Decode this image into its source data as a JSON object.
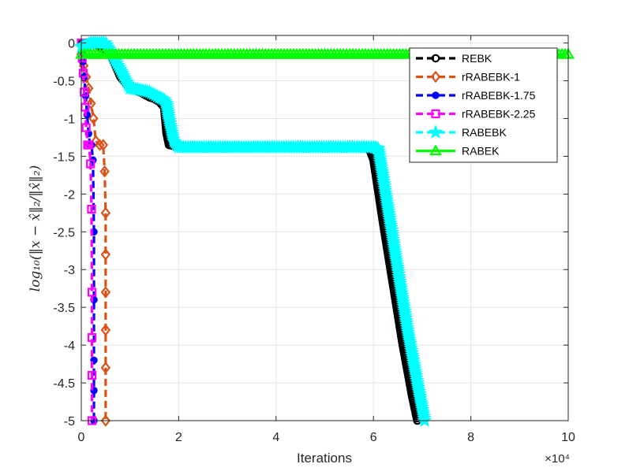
{
  "chart_data": {
    "type": "line",
    "title": "",
    "xlabel": "Iterations",
    "ylabel": "log₁₀(‖x − x̂‖₂/‖x̂‖₂)",
    "x_exponent_label": "×10⁴",
    "x_scale": 10000,
    "xlim": [
      0,
      100000
    ],
    "ylim": [
      -5,
      0.1
    ],
    "x_ticks": [
      0,
      20000,
      40000,
      60000,
      80000,
      100000
    ],
    "x_tick_labels": [
      "0",
      "2",
      "4",
      "6",
      "8",
      "10"
    ],
    "y_ticks": [
      0,
      -0.5,
      -1,
      -1.5,
      -2,
      -2.5,
      -3,
      -3.5,
      -4,
      -4.5,
      -5
    ],
    "y_tick_labels": [
      "0",
      "-0.5",
      "-1",
      "-1.5",
      "-2",
      "-2.5",
      "-3",
      "-3.5",
      "-4",
      "-4.5",
      "-5"
    ],
    "grid": true,
    "legend_position": "top-right",
    "series": [
      {
        "name": "REBK",
        "color": "#000000",
        "marker": "circle",
        "x": [
          0,
          1000,
          3000,
          6000,
          8000,
          10000,
          12000,
          14000,
          15000,
          16000,
          17000,
          17500,
          18000,
          20000,
          30000,
          45000,
          59000,
          60000,
          62000,
          64000,
          66000,
          68000,
          69000
        ],
        "y": [
          0,
          0,
          -0.02,
          -0.15,
          -0.45,
          -0.6,
          -0.65,
          -0.72,
          -0.74,
          -0.78,
          -0.85,
          -1.2,
          -1.35,
          -1.38,
          -1.38,
          -1.38,
          -1.38,
          -1.55,
          -2.4,
          -3.2,
          -4.0,
          -4.7,
          -5.0
        ]
      },
      {
        "name": "rRABEBK-1",
        "color": "#d95319",
        "marker": "diamond",
        "x": [
          0,
          500,
          1000,
          1500,
          2000,
          2500,
          3000,
          3800,
          4500,
          4800,
          5000,
          5000,
          5000,
          5000,
          5000,
          5000
        ],
        "y": [
          -0.15,
          -0.3,
          -0.45,
          -0.6,
          -0.8,
          -1.0,
          -1.3,
          -1.35,
          -1.35,
          -1.7,
          -2.25,
          -2.8,
          -3.3,
          -3.8,
          -4.3,
          -5.0
        ]
      },
      {
        "name": "rRABEBK-1.75",
        "color": "#0000ff",
        "marker": "circle-filled",
        "x": [
          0,
          300,
          600,
          900,
          1200,
          1500,
          1800,
          2100,
          2400,
          2600,
          2600,
          2600,
          2600,
          2600
        ],
        "y": [
          -0.1,
          -0.25,
          -0.45,
          -0.7,
          -0.95,
          -1.2,
          -1.35,
          -1.35,
          -1.55,
          -2.5,
          -3.4,
          -4.2,
          -4.6,
          -5.0
        ]
      },
      {
        "name": "rRABEBK-2.25",
        "color": "#ff00ff",
        "marker": "square",
        "x": [
          0,
          200,
          400,
          600,
          800,
          1000,
          1300,
          1600,
          1900,
          2100,
          2200,
          2200,
          2200,
          2200
        ],
        "y": [
          0,
          -0.2,
          -0.4,
          -0.65,
          -0.85,
          -1.12,
          -1.35,
          -1.35,
          -1.6,
          -2.2,
          -3.3,
          -3.9,
          -4.4,
          -5.0
        ]
      },
      {
        "name": "RABEBK",
        "color": "#00ffff",
        "marker": "pentagram",
        "x": [
          0,
          2000,
          5000,
          8000,
          10000,
          12000,
          14000,
          16000,
          17000,
          17500,
          18000,
          19000,
          20000,
          30000,
          45000,
          60000,
          61000,
          63000,
          65000,
          67000,
          69000,
          70500
        ],
        "y": [
          -0.05,
          0,
          0,
          -0.35,
          -0.6,
          -0.62,
          -0.65,
          -0.72,
          -0.75,
          -0.8,
          -1.0,
          -1.3,
          -1.38,
          -1.38,
          -1.38,
          -1.38,
          -1.4,
          -2.2,
          -3.0,
          -3.8,
          -4.5,
          -5.0
        ]
      },
      {
        "name": "RABEK",
        "color": "#00ff00",
        "marker": "triangle",
        "x": [
          0,
          25000,
          50000,
          75000,
          100000
        ],
        "y": [
          -0.15,
          -0.15,
          -0.15,
          -0.15,
          -0.15
        ]
      }
    ]
  }
}
